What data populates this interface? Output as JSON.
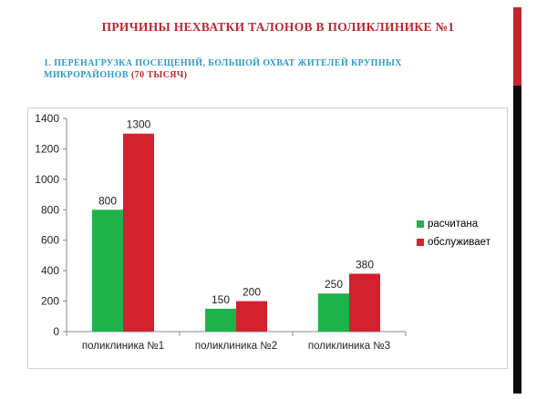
{
  "slide": {
    "title": "ПРИЧИНЫ  НЕХВАТКИ  ТАЛОНОВ  В  ПОЛИКЛИНИКЕ №1",
    "subtitle": "1. ПЕРЕНАГРУЗКА ПОСЕЩЕНИЙ, БОЛЬШОЙ ОХВАТ ЖИТЕЛЕЙ КРУПНЫХ МИКРОРАЙОНОВ",
    "subtitle_note": "(70 ТЫСЯЧ)"
  },
  "colors": {
    "title": "#c1272d",
    "subtitle": "#2e9ac9",
    "subtitle_note": "#c1272d",
    "side_bar_top": "#c1272d",
    "side_bar_bottom": "#0a0a0a"
  },
  "chart_data": {
    "type": "bar",
    "categories": [
      "поликлиника №1",
      "поликлиника №2",
      "поликлиника №3"
    ],
    "series": [
      {
        "name": "расчитана",
        "values": [
          800,
          150,
          250
        ],
        "color": "#1eb24b"
      },
      {
        "name": "обслуживает",
        "values": [
          1300,
          200,
          380
        ],
        "color": "#d3212e"
      }
    ],
    "ylim": [
      0,
      1400
    ],
    "yticks": [
      0,
      200,
      400,
      600,
      800,
      1000,
      1200,
      1400
    ],
    "grid": false,
    "legend": "right",
    "data_labels": true
  }
}
